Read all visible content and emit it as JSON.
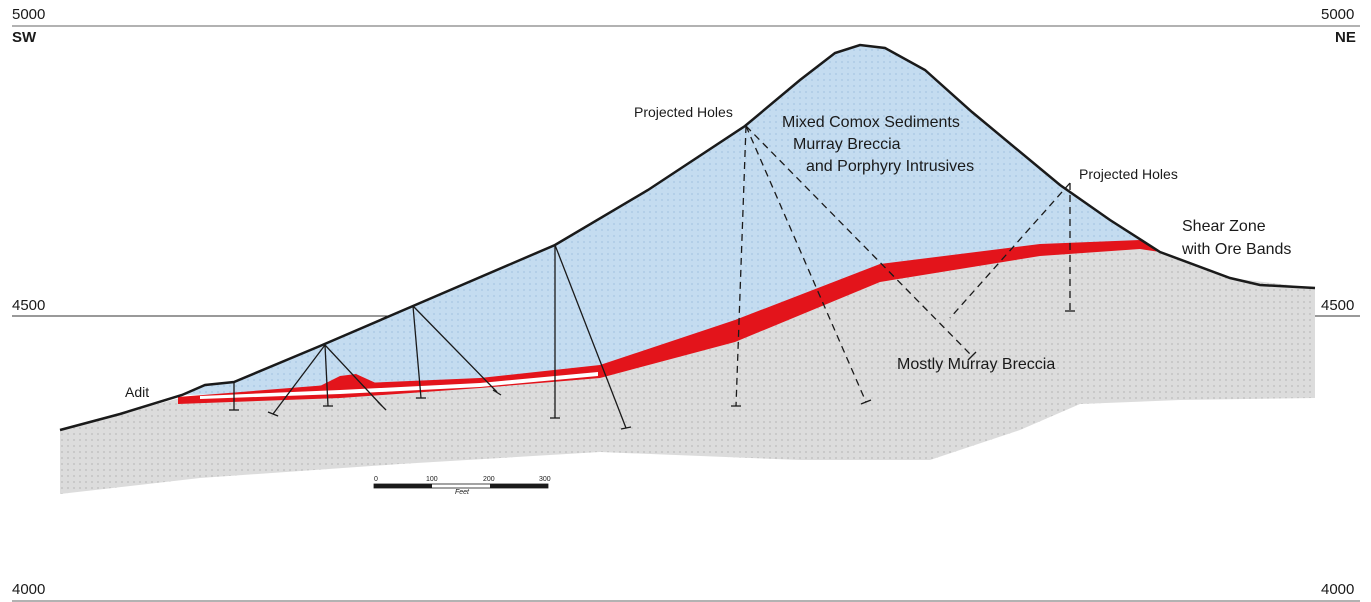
{
  "elevations": {
    "top_left": "5000",
    "top_right": "5000",
    "mid_left": "4500",
    "mid_right": "4500",
    "bottom_left": "4000",
    "bottom_right": "4000"
  },
  "directions": {
    "left": "SW",
    "right": "NE"
  },
  "labels": {
    "adit": "Adit",
    "projected_holes_left": "Projected Holes",
    "projected_holes_right": "Projected Holes",
    "upper_unit_line1": "Mixed Comox Sediments",
    "upper_unit_line2": "Murray Breccia",
    "upper_unit_line3": "and Porphyry Intrusives",
    "shear_zone_line1": "Shear Zone",
    "shear_zone_line2": "with Ore Bands",
    "lower_unit": "Mostly Murray Breccia"
  },
  "scale_bar": {
    "ticks": [
      "0",
      "100",
      "200",
      "300"
    ],
    "unit": "Feet"
  },
  "colors": {
    "upper_unit_fill": "#c4dcf0",
    "lower_unit_fill": "#dcdcdc",
    "ore_zone": "#e3141b",
    "outline": "#1a1a1a"
  }
}
